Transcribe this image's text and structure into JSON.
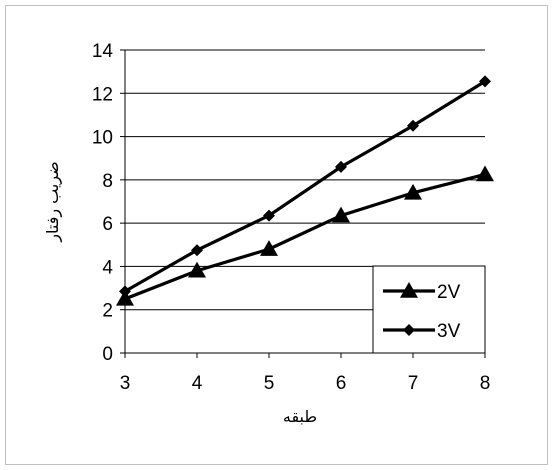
{
  "chart_data": {
    "type": "line",
    "title": "",
    "xlabel": "طبقه",
    "ylabel": "ضریب رفتار",
    "x": [
      3,
      4,
      5,
      6,
      7,
      8
    ],
    "xlim": [
      3,
      8
    ],
    "ylim": [
      0,
      14
    ],
    "yticks": [
      0,
      2,
      4,
      6,
      8,
      10,
      12,
      14
    ],
    "grid": true,
    "legend_position": "bottom-right",
    "series": [
      {
        "name": "2V",
        "marker": "triangle",
        "color": "#000000",
        "values": [
          2.5,
          3.8,
          4.8,
          6.35,
          7.4,
          8.25
        ]
      },
      {
        "name": "3V",
        "marker": "diamond",
        "color": "#000000",
        "values": [
          2.85,
          4.75,
          6.35,
          8.6,
          10.5,
          12.55
        ]
      }
    ]
  }
}
